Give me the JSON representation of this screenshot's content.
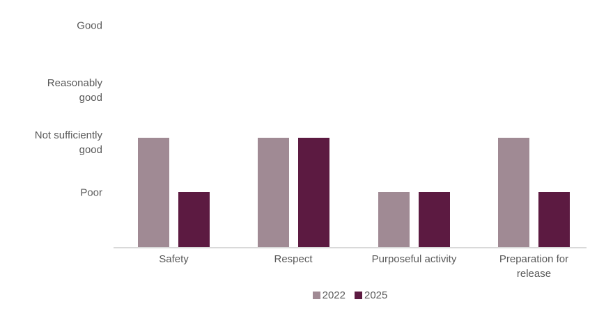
{
  "chart_data": {
    "type": "bar",
    "title": "",
    "xlabel": "",
    "ylabel": "",
    "categories": [
      "Safety",
      "Respect",
      "Purposeful activity",
      "Preparation for release"
    ],
    "series": [
      {
        "name": "2022",
        "color": "#a08a94",
        "ratings": [
          "Not sufficiently good",
          "Not sufficiently good",
          "Poor",
          "Not sufficiently good"
        ],
        "values": [
          2,
          2,
          1,
          2
        ]
      },
      {
        "name": "2025",
        "color": "#5c1a41",
        "ratings": [
          "Poor",
          "Not sufficiently good",
          "Poor",
          "Poor"
        ],
        "values": [
          1,
          2,
          1,
          1
        ]
      }
    ],
    "y_axis": {
      "tick_labels": [
        "Good",
        "Reasonably good",
        "Not sufficiently good",
        "Poor"
      ],
      "tick_values": [
        4,
        3,
        2,
        1
      ],
      "range": [
        0,
        4
      ]
    },
    "legend_position": "bottom-center",
    "grid": "off",
    "colors": {
      "axis_line": "#d9d9d9",
      "text": "#595959",
      "background": "#ffffff"
    }
  }
}
